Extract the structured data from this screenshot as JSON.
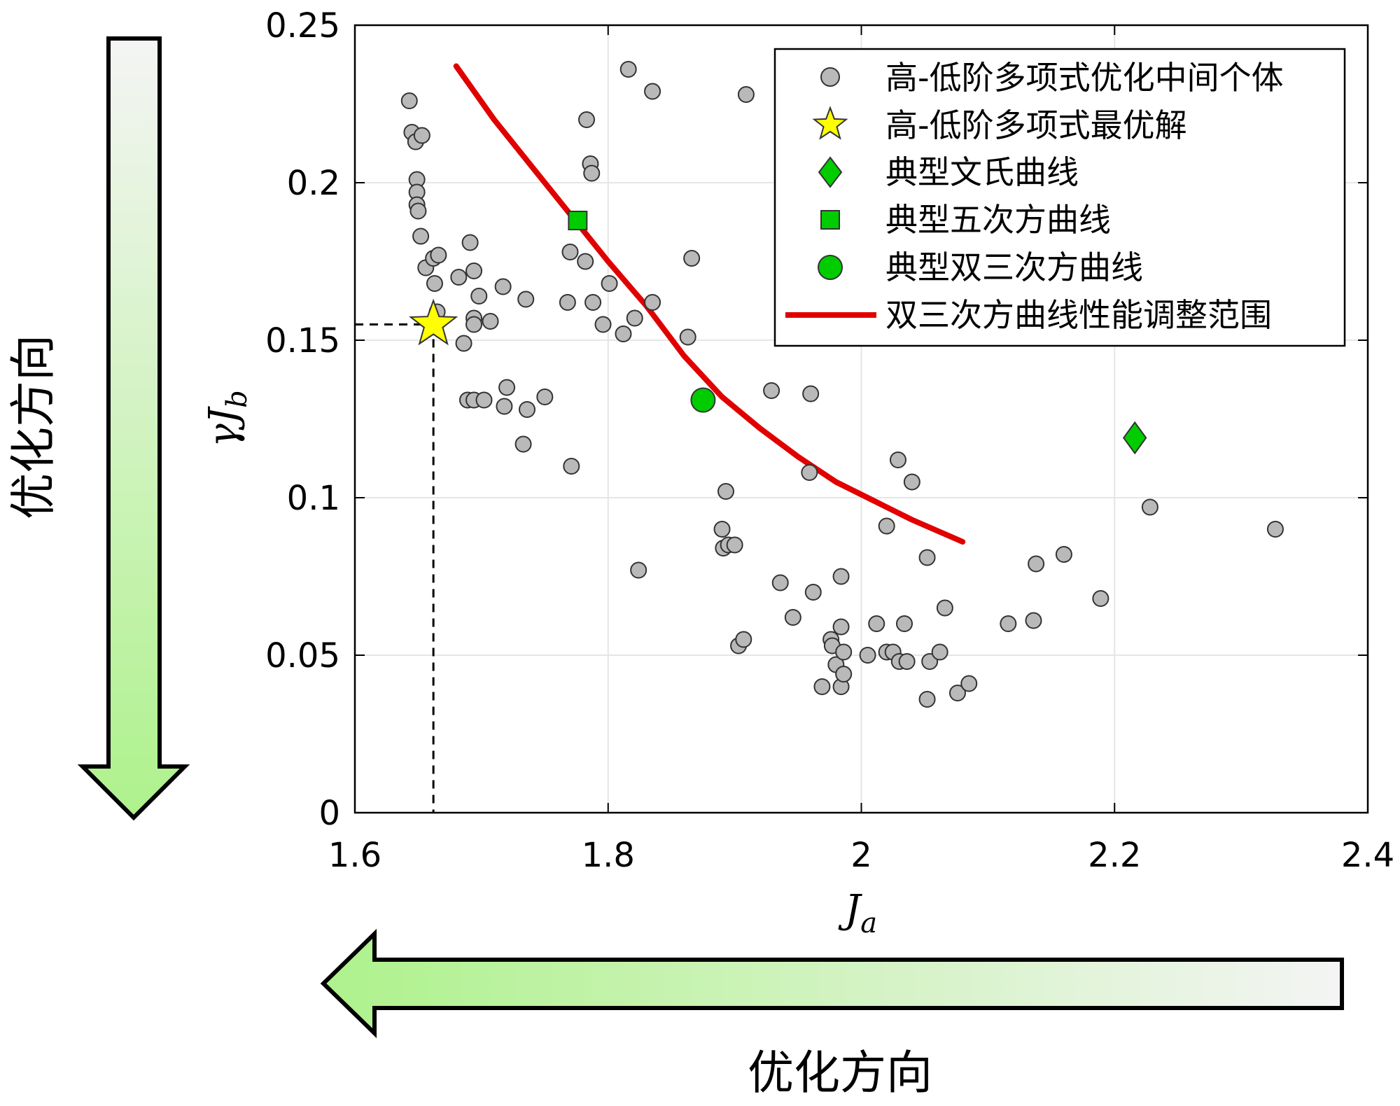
{
  "chart_data": {
    "type": "scatter",
    "xlabel": "J",
    "xlabel_sub": "a",
    "ylabel": "γJ",
    "ylabel_sub": "b",
    "xlim": [
      1.6,
      2.4
    ],
    "ylim": [
      0,
      0.25
    ],
    "xticks": [
      "1.6",
      "1.8",
      "2",
      "2.2",
      "2.4"
    ],
    "xtick_values": [
      1.6,
      1.8,
      2.0,
      2.2,
      2.4
    ],
    "yticks": [
      "0",
      "0.05",
      "0.1",
      "0.15",
      "0.2",
      "0.25"
    ],
    "ytick_values": [
      0,
      0.05,
      0.1,
      0.15,
      0.2,
      0.25
    ],
    "grid": true,
    "legend_position": "top-right",
    "legend": [
      "高-低阶多项式优化中间个体",
      "高-低阶多项式最优解",
      "典型文氏曲线",
      "典型五次方曲线",
      "典型双三次方曲线",
      "双三次方曲线性能调整范围"
    ],
    "series": [
      {
        "name": "高-低阶多项式优化中间个体",
        "marker": "circle",
        "color": "#b9b9b9",
        "points": [
          [
            1.643,
            0.226
          ],
          [
            1.645,
            0.216
          ],
          [
            1.648,
            0.213
          ],
          [
            1.653,
            0.215
          ],
          [
            1.649,
            0.201
          ],
          [
            1.649,
            0.197
          ],
          [
            1.649,
            0.193
          ],
          [
            1.65,
            0.191
          ],
          [
            1.652,
            0.183
          ],
          [
            1.656,
            0.173
          ],
          [
            1.662,
            0.176
          ],
          [
            1.666,
            0.177
          ],
          [
            1.663,
            0.168
          ],
          [
            1.665,
            0.159
          ],
          [
            1.682,
            0.17
          ],
          [
            1.691,
            0.181
          ],
          [
            1.694,
            0.172
          ],
          [
            1.698,
            0.164
          ],
          [
            1.694,
            0.157
          ],
          [
            1.694,
            0.155
          ],
          [
            1.707,
            0.156
          ],
          [
            1.717,
            0.167
          ],
          [
            1.686,
            0.149
          ],
          [
            1.689,
            0.131
          ],
          [
            1.694,
            0.131
          ],
          [
            1.702,
            0.131
          ],
          [
            1.718,
            0.129
          ],
          [
            1.72,
            0.135
          ],
          [
            1.736,
            0.128
          ],
          [
            1.75,
            0.132
          ],
          [
            1.733,
            0.117
          ],
          [
            1.735,
            0.163
          ],
          [
            1.768,
            0.162
          ],
          [
            1.77,
            0.178
          ],
          [
            1.782,
            0.175
          ],
          [
            1.788,
            0.162
          ],
          [
            1.771,
            0.11
          ],
          [
            1.783,
            0.22
          ],
          [
            1.786,
            0.206
          ],
          [
            1.787,
            0.203
          ],
          [
            1.816,
            0.236
          ],
          [
            1.835,
            0.229
          ],
          [
            1.801,
            0.168
          ],
          [
            1.796,
            0.155
          ],
          [
            1.812,
            0.152
          ],
          [
            1.821,
            0.157
          ],
          [
            1.835,
            0.162
          ],
          [
            1.866,
            0.176
          ],
          [
            1.863,
            0.151
          ],
          [
            1.909,
            0.228
          ],
          [
            1.929,
            0.134
          ],
          [
            1.96,
            0.133
          ],
          [
            1.959,
            0.108
          ],
          [
            1.824,
            0.077
          ],
          [
            1.893,
            0.102
          ],
          [
            1.89,
            0.09
          ],
          [
            1.891,
            0.084
          ],
          [
            1.895,
            0.085
          ],
          [
            1.9,
            0.085
          ],
          [
            1.903,
            0.053
          ],
          [
            1.907,
            0.055
          ],
          [
            1.936,
            0.073
          ],
          [
            1.946,
            0.062
          ],
          [
            1.962,
            0.07
          ],
          [
            1.969,
            0.04
          ],
          [
            1.984,
            0.075
          ],
          [
            1.984,
            0.059
          ],
          [
            1.976,
            0.055
          ],
          [
            1.977,
            0.053
          ],
          [
            1.98,
            0.047
          ],
          [
            1.984,
            0.04
          ],
          [
            1.986,
            0.044
          ],
          [
            1.986,
            0.051
          ],
          [
            2.005,
            0.05
          ],
          [
            2.012,
            0.06
          ],
          [
            2.02,
            0.051
          ],
          [
            2.025,
            0.051
          ],
          [
            2.03,
            0.048
          ],
          [
            2.036,
            0.048
          ],
          [
            2.034,
            0.06
          ],
          [
            2.02,
            0.091
          ],
          [
            2.029,
            0.112
          ],
          [
            2.04,
            0.105
          ],
          [
            2.052,
            0.081
          ],
          [
            2.052,
            0.036
          ],
          [
            2.054,
            0.048
          ],
          [
            2.062,
            0.051
          ],
          [
            2.066,
            0.065
          ],
          [
            2.076,
            0.038
          ],
          [
            2.085,
            0.041
          ],
          [
            2.116,
            0.06
          ],
          [
            2.136,
            0.061
          ],
          [
            2.138,
            0.079
          ],
          [
            2.16,
            0.082
          ],
          [
            2.189,
            0.068
          ],
          [
            2.228,
            0.097
          ],
          [
            2.327,
            0.09
          ]
        ]
      },
      {
        "name": "高-低阶多项式最优解",
        "marker": "star",
        "color": "#ffff00",
        "points": [
          [
            1.662,
            0.155
          ]
        ]
      },
      {
        "name": "典型文氏曲线",
        "marker": "diamond",
        "color": "#00cc00",
        "points": [
          [
            2.216,
            0.119
          ]
        ]
      },
      {
        "name": "典型五次方曲线",
        "marker": "square",
        "color": "#00cc00",
        "points": [
          [
            1.776,
            0.188
          ]
        ]
      },
      {
        "name": "典型双三次方曲线",
        "marker": "circle",
        "color": "#00cc00",
        "points": [
          [
            1.875,
            0.131
          ]
        ]
      },
      {
        "name": "双三次方曲线性能调整范围",
        "type": "line",
        "color": "#e00000",
        "points": [
          [
            1.68,
            0.237
          ],
          [
            1.71,
            0.22
          ],
          [
            1.74,
            0.205
          ],
          [
            1.77,
            0.19
          ],
          [
            1.8,
            0.175
          ],
          [
            1.83,
            0.161
          ],
          [
            1.86,
            0.145
          ],
          [
            1.89,
            0.132
          ],
          [
            1.92,
            0.122
          ],
          [
            1.95,
            0.113
          ],
          [
            1.98,
            0.105
          ],
          [
            2.01,
            0.099
          ],
          [
            2.04,
            0.093
          ],
          [
            2.08,
            0.086
          ]
        ]
      }
    ],
    "reference_lines": {
      "x": 1.662,
      "y": 0.155
    }
  },
  "arrows": {
    "vertical_label": "优化方向",
    "horizontal_label": "优化方向"
  },
  "colors": {
    "arrow_light": "#aef28c",
    "arrow_white": "#f4f4f4",
    "curve": "#e00000"
  }
}
